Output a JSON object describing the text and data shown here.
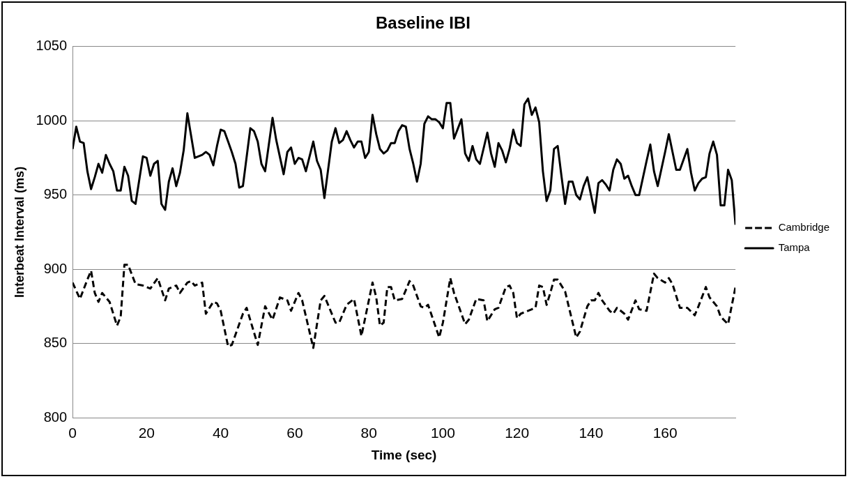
{
  "chart_data": {
    "type": "line",
    "title": "Baseline IBI",
    "xlabel": "Time (sec)",
    "ylabel": "Interbeat Interval (ms)",
    "xlim": [
      0,
      179
    ],
    "xticks": [
      0,
      20,
      40,
      60,
      80,
      100,
      120,
      140,
      160
    ],
    "ylim": [
      800,
      1050
    ],
    "yticks": [
      800,
      850,
      900,
      950,
      1000,
      1050
    ],
    "grid": "y",
    "legend": "right",
    "marker": "none",
    "series": [
      {
        "name": "Cambridge",
        "color": "#000000",
        "line_style": "dashed",
        "x": [
          0,
          2,
          4,
          5,
          6,
          7,
          8,
          10,
          12,
          13,
          14,
          15,
          17,
          19,
          21,
          23,
          25,
          26,
          28,
          29,
          31,
          32,
          33,
          35,
          36,
          38,
          39,
          40,
          42,
          43,
          46,
          47,
          50,
          52,
          54,
          56,
          58,
          59,
          61,
          62,
          65,
          67,
          68,
          71,
          72,
          74,
          76,
          78,
          81,
          82,
          83,
          84,
          85,
          86,
          87,
          89,
          91,
          92,
          94,
          95,
          96,
          99,
          100,
          102,
          103,
          106,
          107,
          109,
          111,
          112,
          114,
          115,
          117,
          118,
          119,
          120,
          121,
          124,
          125,
          126,
          127,
          128,
          129,
          130,
          131,
          133,
          136,
          137,
          139,
          140,
          141,
          142,
          143,
          145,
          146,
          147,
          149,
          150,
          152,
          153,
          155,
          157,
          158,
          160,
          161,
          162,
          164,
          166,
          168,
          169,
          171,
          172,
          174,
          175,
          177,
          179
        ],
        "values": [
          891,
          880,
          893,
          899,
          884,
          878,
          884,
          878,
          862,
          868,
          903,
          903,
          890,
          889,
          887,
          894,
          879,
          887,
          889,
          884,
          891,
          892,
          889,
          891,
          870,
          878,
          877,
          872,
          848,
          849,
          870,
          874,
          849,
          875,
          866,
          881,
          879,
          872,
          884,
          879,
          847,
          879,
          882,
          864,
          864,
          876,
          880,
          855,
          891,
          881,
          862,
          864,
          888,
          888,
          879,
          880,
          892,
          889,
          875,
          874,
          876,
          854,
          864,
          894,
          884,
          863,
          866,
          880,
          879,
          865,
          873,
          874,
          888,
          889,
          884,
          867,
          870,
          873,
          874,
          889,
          888,
          876,
          884,
          893,
          893,
          885,
          854,
          858,
          875,
          879,
          879,
          884,
          879,
          872,
          870,
          874,
          870,
          866,
          879,
          873,
          872,
          897,
          894,
          891,
          894,
          890,
          874,
          874,
          869,
          875,
          888,
          881,
          875,
          868,
          863,
          888
        ]
      },
      {
        "name": "Tampa",
        "color": "#000000",
        "line_style": "solid",
        "x": [
          0,
          1,
          2,
          3,
          4,
          5,
          6,
          7,
          8,
          9,
          10,
          11,
          12,
          13,
          14,
          15,
          16,
          17,
          19,
          20,
          21,
          22,
          23,
          24,
          25,
          26,
          27,
          28,
          29,
          30,
          31,
          33,
          35,
          36,
          37,
          38,
          39,
          40,
          41,
          42,
          43,
          44,
          45,
          46,
          48,
          49,
          50,
          51,
          52,
          54,
          55,
          57,
          58,
          59,
          60,
          61,
          62,
          63,
          65,
          66,
          67,
          68,
          70,
          71,
          72,
          73,
          74,
          75,
          76,
          77,
          78,
          79,
          80,
          81,
          82,
          83,
          84,
          85,
          86,
          87,
          88,
          89,
          90,
          91,
          92,
          93,
          94,
          95,
          96,
          97,
          98,
          99,
          100,
          101,
          102,
          103,
          105,
          106,
          107,
          108,
          109,
          110,
          112,
          113,
          114,
          115,
          116,
          117,
          118,
          119,
          120,
          121,
          122,
          123,
          124,
          125,
          126,
          127,
          128,
          129,
          130,
          131,
          132,
          133,
          134,
          135,
          136,
          137,
          138,
          139,
          141,
          142,
          143,
          144,
          145,
          146,
          147,
          148,
          149,
          150,
          151,
          152,
          153,
          155,
          156,
          157,
          158,
          160,
          161,
          162,
          163,
          164,
          166,
          167,
          168,
          169,
          170,
          171,
          172,
          173,
          174,
          175,
          176,
          177,
          178,
          179
        ],
        "values": [
          981,
          996,
          986,
          985,
          966,
          954,
          962,
          971,
          965,
          977,
          971,
          966,
          953,
          953,
          969,
          963,
          946,
          944,
          976,
          975,
          963,
          971,
          973,
          944,
          940,
          959,
          968,
          956,
          965,
          980,
          1005,
          975,
          977,
          979,
          977,
          970,
          983,
          994,
          993,
          986,
          979,
          971,
          955,
          956,
          995,
          993,
          986,
          971,
          966,
          1002,
          987,
          964,
          979,
          982,
          971,
          975,
          974,
          966,
          986,
          973,
          967,
          948,
          986,
          995,
          985,
          987,
          993,
          987,
          982,
          986,
          986,
          975,
          979,
          1004,
          991,
          981,
          978,
          980,
          985,
          985,
          993,
          997,
          996,
          981,
          971,
          959,
          971,
          998,
          1003,
          1001,
          1001,
          999,
          995,
          1012,
          1012,
          988,
          1001,
          978,
          973,
          983,
          974,
          971,
          992,
          978,
          969,
          985,
          980,
          972,
          981,
          994,
          985,
          983,
          1011,
          1015,
          1004,
          1009,
          999,
          966,
          946,
          953,
          981,
          983,
          963,
          944,
          959,
          959,
          950,
          947,
          956,
          962,
          938,
          958,
          960,
          957,
          953,
          967,
          974,
          971,
          961,
          963,
          956,
          950,
          950,
          973,
          984,
          966,
          956,
          979,
          991,
          979,
          967,
          967,
          981,
          965,
          953,
          958,
          961,
          962,
          978,
          986,
          977,
          943,
          943,
          967,
          960,
          930
        ]
      }
    ]
  }
}
